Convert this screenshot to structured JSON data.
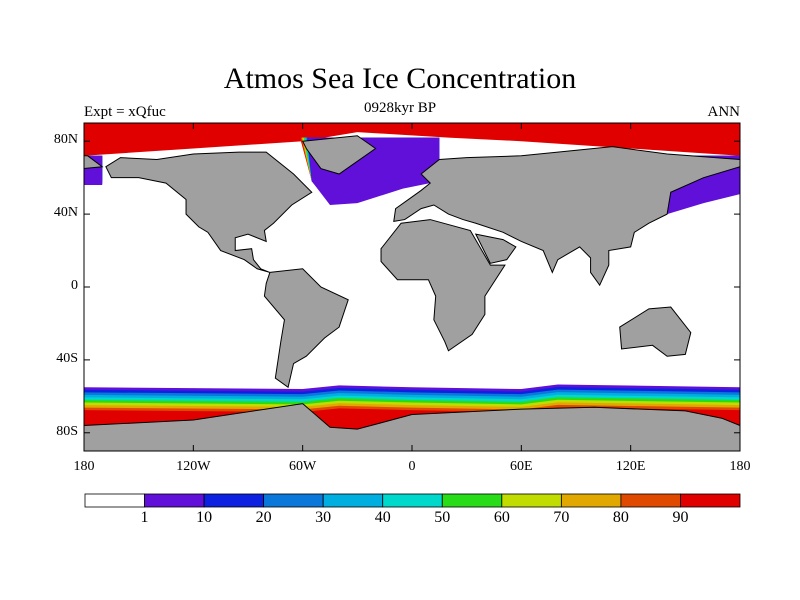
{
  "title": "Atmos Sea Ice Concentration",
  "subtitle": "0928kyr BP",
  "left_string": "Expt = xQfuc",
  "right_string": "ANN",
  "y_ticks": [
    {
      "lat": 80,
      "label": "80N"
    },
    {
      "lat": 40,
      "label": "40N"
    },
    {
      "lat": 0,
      "label": "0"
    },
    {
      "lat": -40,
      "label": "40S"
    },
    {
      "lat": -80,
      "label": "80S"
    }
  ],
  "x_ticks": [
    {
      "lon": -180,
      "label": "180"
    },
    {
      "lon": -120,
      "label": "120W"
    },
    {
      "lon": -60,
      "label": "60W"
    },
    {
      "lon": 0,
      "label": "0"
    },
    {
      "lon": 60,
      "label": "60E"
    },
    {
      "lon": 120,
      "label": "120E"
    },
    {
      "lon": 180,
      "label": "180"
    }
  ],
  "colorbar": {
    "levels": [
      "1",
      "10",
      "20",
      "30",
      "40",
      "50",
      "60",
      "70",
      "80",
      "90"
    ],
    "colors": [
      "#ffffff",
      "#6010d8",
      "#0c22e0",
      "#0a78da",
      "#00aee0",
      "#00d8cc",
      "#28dc18",
      "#c0dc00",
      "#e0a800",
      "#e04a00",
      "#e00000"
    ]
  },
  "land_color": "#a0a0a0",
  "chart_data": {
    "type": "heatmap",
    "title": "Atmos Sea Ice Concentration",
    "variable": "sea ice concentration",
    "xlim": [
      -180,
      180
    ],
    "ylim": [
      -90,
      90
    ],
    "contour_levels": [
      1,
      10,
      20,
      30,
      40,
      50,
      60,
      70,
      80,
      90
    ]
  }
}
